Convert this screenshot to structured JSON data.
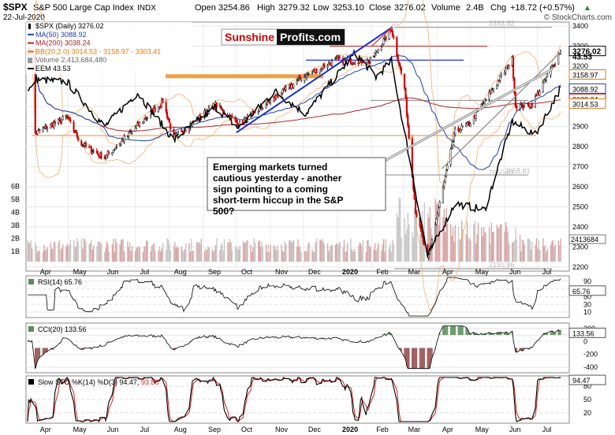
{
  "header": {
    "symbol": "$SPX",
    "name": "S&P 500 Large Cap Index",
    "exchange": "INDX",
    "date": "22-Jul-2020",
    "open_label": "Open",
    "open": "3254.86",
    "high_label": "High",
    "high": "3279.32",
    "low_label": "Low",
    "low": "3253.10",
    "close_label": "Close",
    "close": "3276.02",
    "volume_label": "Volume",
    "volume": "2.4B",
    "chg_label": "Chg",
    "chg": "+18.72 (+0.57%)",
    "chg_arrow": "▲",
    "brand": "© StockCharts.com"
  },
  "watermark": {
    "part1": "Sunshine",
    "part2": "Profits.com",
    "color1": "#cc0000",
    "color2": "#ffffff"
  },
  "annotation": "Emerging markets turned cautious yesterday - another sign pointing to a coming short-term hiccup in the S&P 500?",
  "legend": [
    {
      "text": "$SPX (Daily) 3276.02",
      "color": "#000000",
      "icon": "candle-icon"
    },
    {
      "text": "MA(50) 3088.92",
      "color": "#1f3fa8",
      "icon": "line-icon"
    },
    {
      "text": "MA(200) 3038.24",
      "color": "#b22222",
      "icon": "line-icon"
    },
    {
      "text": "BB(20,2.0) 3014.53 - 3158.97 - 3303.41",
      "color": "#e07a10",
      "icon": "line-icon"
    },
    {
      "text": "Volume 2,413,684,480",
      "color": "#666666",
      "icon": "volume-icon"
    },
    {
      "text": "EEM 43.53",
      "color": "#000000",
      "icon": "line-icon"
    }
  ],
  "chart_data": [
    {
      "type": "candlestick",
      "panel": "price",
      "x_range": [
        "2019-03-25",
        "2020-07-22"
      ],
      "x_tick_labels": [
        "Apr",
        "May",
        "Jun",
        "Jul",
        "Aug",
        "Sep",
        "Oct",
        "Nov",
        "Dec",
        "2020",
        "Feb",
        "Mar",
        "Apr",
        "May",
        "Jun",
        "Jul"
      ],
      "y_ticks": [
        2200,
        2300,
        2400,
        2500,
        2600,
        2700,
        2800,
        2900,
        3000,
        3100,
        3200,
        3300,
        3400
      ],
      "ylim": [
        2180,
        3420
      ],
      "price_label_boxes": [
        {
          "value": "3276.02",
          "color": "#000000"
        },
        {
          "value": "3158.97",
          "color": "#e07a10"
        },
        {
          "value": "3088.92",
          "color": "#1f3fa8"
        },
        {
          "value": "3038.24",
          "color": "#b22222"
        },
        {
          "value": "3014.53",
          "color": "#e07a10"
        }
      ],
      "eem_label": "43.53",
      "horizontal_level_labels": [
        "3393.52",
        "2658.81",
        "2650.81",
        "2191.86"
      ],
      "spx_path": [
        [
          "2019-04-01",
          2867
        ],
        [
          "2019-04-30",
          2946
        ],
        [
          "2019-05-13",
          2812
        ],
        [
          "2019-06-03",
          2744
        ],
        [
          "2019-07-26",
          3025
        ],
        [
          "2019-08-05",
          2844
        ],
        [
          "2019-09-12",
          3009
        ],
        [
          "2019-10-03",
          2910
        ],
        [
          "2019-11-29",
          3140
        ],
        [
          "2019-12-31",
          3230
        ],
        [
          "2020-01-31",
          3225
        ],
        [
          "2020-02-19",
          3386
        ],
        [
          "2020-03-02",
          3090
        ],
        [
          "2020-03-12",
          2480
        ],
        [
          "2020-03-23",
          2237
        ],
        [
          "2020-04-17",
          2875
        ],
        [
          "2020-04-30",
          2912
        ],
        [
          "2020-06-08",
          3232
        ],
        [
          "2020-06-11",
          3002
        ],
        [
          "2020-06-26",
          3009
        ],
        [
          "2020-07-22",
          3276
        ]
      ],
      "eem_path": [
        [
          "2019-04-01",
          44.2
        ],
        [
          "2019-04-30",
          44.0
        ],
        [
          "2019-06-03",
          40.6
        ],
        [
          "2019-07-03",
          43.2
        ],
        [
          "2019-08-05",
          39.6
        ],
        [
          "2019-09-12",
          42.1
        ],
        [
          "2019-10-03",
          40.5
        ],
        [
          "2019-11-05",
          43.3
        ],
        [
          "2019-12-03",
          41.6
        ],
        [
          "2020-01-17",
          46.2
        ],
        [
          "2020-02-05",
          44.4
        ],
        [
          "2020-02-19",
          45.6
        ],
        [
          "2020-03-23",
          30.8
        ],
        [
          "2020-04-17",
          34.8
        ],
        [
          "2020-05-14",
          34.3
        ],
        [
          "2020-06-08",
          41.0
        ],
        [
          "2020-06-29",
          40.0
        ],
        [
          "2020-07-22",
          43.53
        ]
      ]
    },
    {
      "type": "bar",
      "panel": "volume",
      "y_tick_labels": [
        "1B",
        "2B",
        "3B",
        "4B",
        "5B",
        "6B"
      ],
      "last_label": "2413684"
    },
    {
      "type": "line",
      "panel": "rsi",
      "title": "RSI(14) 65.76",
      "y_ticks": [
        10,
        30,
        50,
        70,
        90
      ],
      "last_label": "65.76"
    },
    {
      "type": "line",
      "panel": "cci",
      "title": "CCI(20) 133.56",
      "y_ticks": [
        -400,
        -200,
        0,
        100,
        200
      ],
      "last_label": "133.56"
    },
    {
      "type": "line",
      "panel": "stochastic",
      "title": "Slow STO %K(14) %D(3) 94.47, 93.86",
      "title_parts": {
        "main": "Slow STO %K(14) %D(3) 94.47,",
        "d_value": "93.86"
      },
      "y_ticks": [
        20,
        50,
        80
      ],
      "last_label": "94.47",
      "x_tick_labels": [
        "Apr",
        "May",
        "Jun",
        "Jul",
        "Aug",
        "Sep",
        "Oct",
        "Nov",
        "Dec",
        "2020",
        "Feb",
        "Mar",
        "Apr",
        "May",
        "Jun",
        "Jul"
      ]
    }
  ]
}
